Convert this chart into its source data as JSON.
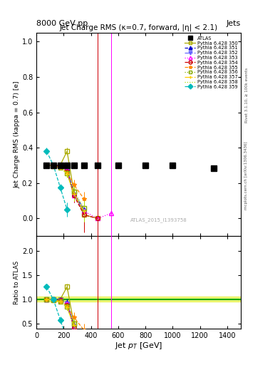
{
  "title": "Jet Charge RMS (κ=0.7, forward, |η| < 2.1)",
  "header_left": "8000 GeV pp",
  "header_right": "Jets",
  "xlabel": "Jet p_{T} [GeV]",
  "ylabel_main": "Jet Charge RMS (kappa = 0.7) [e]",
  "ylabel_ratio": "Ratio to ATLAS",
  "watermark": "ATLAS_2015_I1393758",
  "rivet_label": "Rivet 3.1.10, ≥ 100k events",
  "mcplots_label": "mcplots.cern.ch [arXiv:1306.3436]",
  "xlim": [
    0,
    1500
  ],
  "ylim_main": [
    -0.1,
    1.05
  ],
  "ylim_ratio": [
    0.4,
    2.3
  ],
  "atlas_x": [
    75,
    125,
    175,
    225,
    275,
    350,
    450,
    600,
    800,
    1000,
    1300
  ],
  "atlas_y": [
    0.302,
    0.302,
    0.302,
    0.302,
    0.302,
    0.302,
    0.302,
    0.302,
    0.302,
    0.302,
    0.285
  ],
  "series": [
    {
      "label": "Pythia 6.428 350",
      "color": "#aaaa00",
      "linestyle": "-",
      "marker": "s",
      "markerfacecolor": "none",
      "x": [
        75,
        125,
        175,
        225,
        275,
        350,
        450
      ],
      "y": [
        0.302,
        0.302,
        0.302,
        0.38,
        0.15,
        0.02,
        0.0
      ],
      "yerr": [
        0.01,
        0.01,
        0.01,
        0.02,
        0.05,
        0.08,
        1.5
      ]
    },
    {
      "label": "Pythia 6.428 351",
      "color": "#0000cc",
      "linestyle": "--",
      "marker": "^",
      "markerfacecolor": "#0000cc",
      "x": [
        75,
        125,
        175,
        225,
        275,
        350
      ],
      "y": [
        0.302,
        0.3,
        0.3,
        0.285,
        0.14,
        0.05
      ],
      "yerr": [
        0.01,
        0.01,
        0.01,
        0.02,
        0.04,
        0.06
      ]
    },
    {
      "label": "Pythia 6.428 352",
      "color": "#6666ff",
      "linestyle": "-.",
      "marker": "v",
      "markerfacecolor": "#6666ff",
      "x": [
        75,
        125,
        175,
        225,
        275,
        350
      ],
      "y": [
        0.302,
        0.3,
        0.295,
        0.275,
        0.13,
        0.04
      ],
      "yerr": [
        0.01,
        0.01,
        0.01,
        0.02,
        0.04,
        0.05
      ]
    },
    {
      "label": "Pythia 6.428 353",
      "color": "#ff00ff",
      "linestyle": ":",
      "marker": "^",
      "markerfacecolor": "none",
      "x": [
        75,
        125,
        175,
        225,
        275,
        350,
        450,
        550
      ],
      "y": [
        0.302,
        0.3,
        0.295,
        0.275,
        0.13,
        0.04,
        0.0,
        0.03
      ],
      "yerr": [
        0.01,
        0.01,
        0.01,
        0.02,
        0.04,
        0.06,
        1.5,
        1.5
      ]
    },
    {
      "label": "Pythia 6.428 354",
      "color": "#cc0000",
      "linestyle": "--",
      "marker": "o",
      "markerfacecolor": "none",
      "x": [
        75,
        125,
        175,
        225,
        275,
        350,
        450
      ],
      "y": [
        0.302,
        0.3,
        0.295,
        0.265,
        0.13,
        0.02,
        0.0
      ],
      "yerr": [
        0.01,
        0.01,
        0.01,
        0.02,
        0.04,
        0.1,
        1.4
      ]
    },
    {
      "label": "Pythia 6.428 355",
      "color": "#ff8800",
      "linestyle": "--",
      "marker": "*",
      "markerfacecolor": "#ff8800",
      "x": [
        75,
        125,
        175,
        225,
        275,
        350
      ],
      "y": [
        0.302,
        0.298,
        0.29,
        0.26,
        0.19,
        0.11
      ],
      "yerr": [
        0.01,
        0.01,
        0.01,
        0.02,
        0.03,
        0.04
      ]
    },
    {
      "label": "Pythia 6.428 356",
      "color": "#88aa00",
      "linestyle": ":",
      "marker": "s",
      "markerfacecolor": "none",
      "x": [
        75,
        125,
        175,
        225,
        275,
        350
      ],
      "y": [
        0.302,
        0.297,
        0.288,
        0.255,
        0.15,
        0.06
      ],
      "yerr": [
        0.01,
        0.01,
        0.01,
        0.02,
        0.04,
        0.06
      ]
    },
    {
      "label": "Pythia 6.428 357",
      "color": "#ffcc00",
      "linestyle": "-.",
      "marker": "+",
      "markerfacecolor": "#ffcc00",
      "x": [
        75,
        125,
        175,
        225,
        275,
        350
      ],
      "y": [
        0.302,
        0.297,
        0.287,
        0.253,
        0.14,
        0.04
      ],
      "yerr": [
        0.01,
        0.01,
        0.01,
        0.02,
        0.04,
        0.06
      ]
    },
    {
      "label": "Pythia 6.428 358",
      "color": "#aadd00",
      "linestyle": ":",
      "marker": "None",
      "markerfacecolor": "#aadd00",
      "x": [
        75,
        125,
        175,
        225,
        275,
        350
      ],
      "y": [
        0.302,
        0.297,
        0.287,
        0.253,
        0.14,
        0.04
      ],
      "yerr": [
        0.01,
        0.01,
        0.01,
        0.02,
        0.04,
        0.06
      ]
    },
    {
      "label": "Pythia 6.428 359",
      "color": "#00bbbb",
      "linestyle": "--",
      "marker": "D",
      "markerfacecolor": "#00bbbb",
      "x": [
        75,
        125,
        175,
        225
      ],
      "y": [
        0.38,
        0.3,
        0.175,
        0.05
      ],
      "yerr": [
        0.02,
        0.01,
        0.02,
        0.04
      ]
    }
  ],
  "ratio_band_color": "#ddee00",
  "ratio_band_alpha": 0.5,
  "ratio_line_color": "#00aa00"
}
